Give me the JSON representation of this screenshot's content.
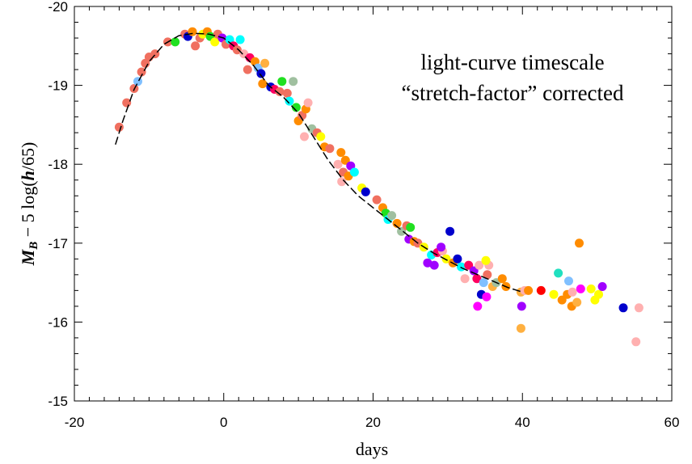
{
  "chart_data": {
    "type": "scatter",
    "xlabel": "days",
    "ylabel": {
      "main": "M",
      "sub": "B",
      "rest": " − 5 log(",
      "h": "h",
      "end": "/65)"
    },
    "annotation": [
      "light-curve timescale",
      "“stretch-factor” corrected"
    ],
    "xlim": [
      -20,
      60
    ],
    "ylim": [
      -15,
      -20
    ],
    "y_inverted": true,
    "x_ticks": [
      -20,
      0,
      20,
      40,
      60
    ],
    "y_ticks": [
      -20,
      -19,
      -18,
      -17,
      -16,
      -15
    ],
    "x_tick_labels": [
      "-20",
      "0",
      "20",
      "40",
      "60"
    ],
    "y_tick_labels": [
      "-20",
      "-19",
      "-18",
      "-17",
      "-16",
      "-15"
    ],
    "grid": false,
    "template_curve": [
      [
        -14.5,
        -18.25
      ],
      [
        -13.5,
        -18.55
      ],
      [
        -12,
        -18.95
      ],
      [
        -10,
        -19.3
      ],
      [
        -8,
        -19.52
      ],
      [
        -6,
        -19.63
      ],
      [
        -4,
        -19.66
      ],
      [
        -2,
        -19.65
      ],
      [
        0,
        -19.6
      ],
      [
        2,
        -19.45
      ],
      [
        4,
        -19.25
      ],
      [
        6,
        -19.0
      ],
      [
        8,
        -18.85
      ],
      [
        10,
        -18.65
      ],
      [
        12,
        -18.35
      ],
      [
        14,
        -18.05
      ],
      [
        16,
        -17.8
      ],
      [
        18,
        -17.6
      ],
      [
        20,
        -17.45
      ],
      [
        22,
        -17.3
      ],
      [
        24,
        -17.15
      ],
      [
        26,
        -17.0
      ],
      [
        28,
        -16.88
      ],
      [
        30,
        -16.78
      ],
      [
        32,
        -16.68
      ],
      [
        34,
        -16.6
      ],
      [
        36,
        -16.52
      ],
      [
        38,
        -16.44
      ],
      [
        40,
        -16.38
      ]
    ],
    "points": [
      {
        "x": -14,
        "y": -18.47,
        "c": "#f07060"
      },
      {
        "x": -13,
        "y": -18.78,
        "c": "#f07060"
      },
      {
        "x": -12,
        "y": -18.96,
        "c": "#f07060"
      },
      {
        "x": -11.5,
        "y": -19.05,
        "c": "#80c0ff"
      },
      {
        "x": -11,
        "y": -19.17,
        "c": "#f07060"
      },
      {
        "x": -10.5,
        "y": -19.28,
        "c": "#f07060"
      },
      {
        "x": -10,
        "y": -19.36,
        "c": "#f07060"
      },
      {
        "x": -9.2,
        "y": -19.4,
        "c": "#f07060"
      },
      {
        "x": -7.5,
        "y": -19.55,
        "c": "#f07060"
      },
      {
        "x": -6.5,
        "y": -19.55,
        "c": "#20e020"
      },
      {
        "x": -5.2,
        "y": -19.65,
        "c": "#f07060"
      },
      {
        "x": -4.8,
        "y": -19.62,
        "c": "#0000cc"
      },
      {
        "x": -4.2,
        "y": -19.68,
        "c": "#ff8c00"
      },
      {
        "x": -3.8,
        "y": -19.5,
        "c": "#f07060"
      },
      {
        "x": -3.2,
        "y": -19.6,
        "c": "#f07060"
      },
      {
        "x": -2.8,
        "y": -19.65,
        "c": "#ffff00"
      },
      {
        "x": -2.2,
        "y": -19.68,
        "c": "#ff8c00"
      },
      {
        "x": -1.8,
        "y": -19.62,
        "c": "#20e020"
      },
      {
        "x": -1.2,
        "y": -19.55,
        "c": "#ffff00"
      },
      {
        "x": -0.8,
        "y": -19.65,
        "c": "#f07060"
      },
      {
        "x": -0.2,
        "y": -19.6,
        "c": "#a000ff"
      },
      {
        "x": 0.3,
        "y": -19.52,
        "c": "#f07060"
      },
      {
        "x": 0.8,
        "y": -19.58,
        "c": "#00ffff"
      },
      {
        "x": 1.3,
        "y": -19.5,
        "c": "#ff0060"
      },
      {
        "x": 1.8,
        "y": -19.45,
        "c": "#f07060"
      },
      {
        "x": 2.2,
        "y": -19.58,
        "c": "#00ffff"
      },
      {
        "x": 2.7,
        "y": -19.4,
        "c": "#ffb0b0"
      },
      {
        "x": 3.2,
        "y": -19.2,
        "c": "#f07060"
      },
      {
        "x": 3.5,
        "y": -19.35,
        "c": "#ff0060"
      },
      {
        "x": 4.2,
        "y": -19.3,
        "c": "#ff8c00"
      },
      {
        "x": 4.6,
        "y": -19.22,
        "c": "#80c0ff"
      },
      {
        "x": 5,
        "y": -19.15,
        "c": "#0000cc"
      },
      {
        "x": 5.5,
        "y": -19.28,
        "c": "#ffb040"
      },
      {
        "x": 5.2,
        "y": -19.02,
        "c": "#ff8c00"
      },
      {
        "x": 6.3,
        "y": -18.98,
        "c": "#0000cc"
      },
      {
        "x": 6.8,
        "y": -18.95,
        "c": "#ff0060"
      },
      {
        "x": 7.5,
        "y": -18.92,
        "c": "#f07060"
      },
      {
        "x": 7.8,
        "y": -19.05,
        "c": "#20e020"
      },
      {
        "x": 8.5,
        "y": -18.9,
        "c": "#f07060"
      },
      {
        "x": 8.8,
        "y": -18.8,
        "c": "#00ffff"
      },
      {
        "x": 9.3,
        "y": -19.05,
        "c": "#a0c0a0"
      },
      {
        "x": 9.7,
        "y": -18.72,
        "c": "#20e020"
      },
      {
        "x": 10,
        "y": -18.55,
        "c": "#ff8c00"
      },
      {
        "x": 10.5,
        "y": -18.62,
        "c": "#f07060"
      },
      {
        "x": 11,
        "y": -18.7,
        "c": "#ff8c00"
      },
      {
        "x": 11.3,
        "y": -18.78,
        "c": "#ffb0b0"
      },
      {
        "x": 11.8,
        "y": -18.45,
        "c": "#a0c0a0"
      },
      {
        "x": 10.8,
        "y": -18.35,
        "c": "#ffb0b0"
      },
      {
        "x": 12.5,
        "y": -18.4,
        "c": "#f07060"
      },
      {
        "x": 13,
        "y": -18.35,
        "c": "#ffff00"
      },
      {
        "x": 13.5,
        "y": -18.22,
        "c": "#ff8c00"
      },
      {
        "x": 14.2,
        "y": -18.2,
        "c": "#f07060"
      },
      {
        "x": 15.3,
        "y": -18.0,
        "c": "#ffb0b0"
      },
      {
        "x": 15.7,
        "y": -18.15,
        "c": "#ff8c00"
      },
      {
        "x": 16,
        "y": -17.9,
        "c": "#f07060"
      },
      {
        "x": 16.3,
        "y": -18.05,
        "c": "#ff8c00"
      },
      {
        "x": 16.7,
        "y": -17.85,
        "c": "#ff8c00"
      },
      {
        "x": 17,
        "y": -17.98,
        "c": "#a000ff"
      },
      {
        "x": 17.5,
        "y": -17.9,
        "c": "#00ffff"
      },
      {
        "x": 15.8,
        "y": -17.78,
        "c": "#ffb0b0"
      },
      {
        "x": 18.5,
        "y": -17.7,
        "c": "#ffff00"
      },
      {
        "x": 19,
        "y": -17.65,
        "c": "#0000cc"
      },
      {
        "x": 20.5,
        "y": -17.55,
        "c": "#f07060"
      },
      {
        "x": 21.3,
        "y": -17.45,
        "c": "#ff8c00"
      },
      {
        "x": 21.7,
        "y": -17.38,
        "c": "#20e020"
      },
      {
        "x": 22,
        "y": -17.3,
        "c": "#00ffff"
      },
      {
        "x": 22.5,
        "y": -17.35,
        "c": "#a0c0a0"
      },
      {
        "x": 23.2,
        "y": -17.25,
        "c": "#ff8c00"
      },
      {
        "x": 23.8,
        "y": -17.15,
        "c": "#a0c0a0"
      },
      {
        "x": 24.5,
        "y": -17.22,
        "c": "#f07060"
      },
      {
        "x": 25,
        "y": -17.2,
        "c": "#20e020"
      },
      {
        "x": 24.8,
        "y": -17.05,
        "c": "#a000ff"
      },
      {
        "x": 25.5,
        "y": -17.02,
        "c": "#ff8c00"
      },
      {
        "x": 26,
        "y": -17.0,
        "c": "#f07060"
      },
      {
        "x": 26.8,
        "y": -16.95,
        "c": "#ffff00"
      },
      {
        "x": 27.3,
        "y": -16.75,
        "c": "#a000ff"
      },
      {
        "x": 27.8,
        "y": -16.85,
        "c": "#00ffff"
      },
      {
        "x": 28.2,
        "y": -16.72,
        "c": "#a000ff"
      },
      {
        "x": 28.6,
        "y": -16.88,
        "c": "#ff0060"
      },
      {
        "x": 29.3,
        "y": -16.9,
        "c": "#ffb0b0"
      },
      {
        "x": 29.1,
        "y": -16.95,
        "c": "#a000ff"
      },
      {
        "x": 29.8,
        "y": -16.8,
        "c": "#ffff00"
      },
      {
        "x": 30.3,
        "y": -17.15,
        "c": "#0000cc"
      },
      {
        "x": 30.7,
        "y": -16.75,
        "c": "#ff8c00"
      },
      {
        "x": 31.3,
        "y": -16.8,
        "c": "#0000cc"
      },
      {
        "x": 31.8,
        "y": -16.7,
        "c": "#00ffff"
      },
      {
        "x": 32.3,
        "y": -16.55,
        "c": "#ffb0b0"
      },
      {
        "x": 32.8,
        "y": -16.72,
        "c": "#ff0060"
      },
      {
        "x": 33.5,
        "y": -16.65,
        "c": "#a000ff"
      },
      {
        "x": 33.9,
        "y": -16.55,
        "c": "#ff0060"
      },
      {
        "x": 34.2,
        "y": -16.72,
        "c": "#ffb0b0"
      },
      {
        "x": 34.5,
        "y": -16.35,
        "c": "#0000cc"
      },
      {
        "x": 34.0,
        "y": -16.2,
        "c": "#ff00ff"
      },
      {
        "x": 34.8,
        "y": -16.5,
        "c": "#80c0ff"
      },
      {
        "x": 35.3,
        "y": -16.6,
        "c": "#f07060"
      },
      {
        "x": 35.2,
        "y": -16.32,
        "c": "#ff00ff"
      },
      {
        "x": 35.5,
        "y": -16.72,
        "c": "#ffb0b0"
      },
      {
        "x": 35.1,
        "y": -16.78,
        "c": "#ffff00"
      },
      {
        "x": 36,
        "y": -16.45,
        "c": "#ffb040"
      },
      {
        "x": 36.5,
        "y": -16.5,
        "c": "#a0c0a0"
      },
      {
        "x": 37.3,
        "y": -16.55,
        "c": "#ff8c00"
      },
      {
        "x": 37.8,
        "y": -16.45,
        "c": "#ff8c00"
      },
      {
        "x": 39.8,
        "y": -16.38,
        "c": "#ffb040"
      },
      {
        "x": 40.3,
        "y": -16.4,
        "c": "#ffb0b0"
      },
      {
        "x": 40.8,
        "y": -16.4,
        "c": "#ff8c00"
      },
      {
        "x": 39.9,
        "y": -16.2,
        "c": "#a000ff"
      },
      {
        "x": 39.8,
        "y": -15.92,
        "c": "#ffb040"
      },
      {
        "x": 42.5,
        "y": -16.4,
        "c": "#ff0000"
      },
      {
        "x": 44.2,
        "y": -16.35,
        "c": "#ffff00"
      },
      {
        "x": 44.8,
        "y": -16.62,
        "c": "#20e0c0"
      },
      {
        "x": 45.3,
        "y": -16.28,
        "c": "#ff8c00"
      },
      {
        "x": 46,
        "y": -16.35,
        "c": "#ff8c00"
      },
      {
        "x": 46.2,
        "y": -16.52,
        "c": "#80c0ff"
      },
      {
        "x": 46.6,
        "y": -16.2,
        "c": "#ff8c00"
      },
      {
        "x": 46.7,
        "y": -16.38,
        "c": "#ffb0b0"
      },
      {
        "x": 47.3,
        "y": -16.25,
        "c": "#ffb040"
      },
      {
        "x": 47.6,
        "y": -17.0,
        "c": "#ff8c00"
      },
      {
        "x": 47.8,
        "y": -16.42,
        "c": "#ff00ff"
      },
      {
        "x": 49.2,
        "y": -16.42,
        "c": "#ffff00"
      },
      {
        "x": 49.7,
        "y": -16.28,
        "c": "#ffff00"
      },
      {
        "x": 50.2,
        "y": -16.35,
        "c": "#ffff00"
      },
      {
        "x": 50.7,
        "y": -16.45,
        "c": "#a000ff"
      },
      {
        "x": 53.5,
        "y": -16.18,
        "c": "#0000cc"
      },
      {
        "x": 55.2,
        "y": -15.75,
        "c": "#ffb0b0"
      },
      {
        "x": 55.6,
        "y": -16.18,
        "c": "#ffb0b0"
      }
    ]
  }
}
